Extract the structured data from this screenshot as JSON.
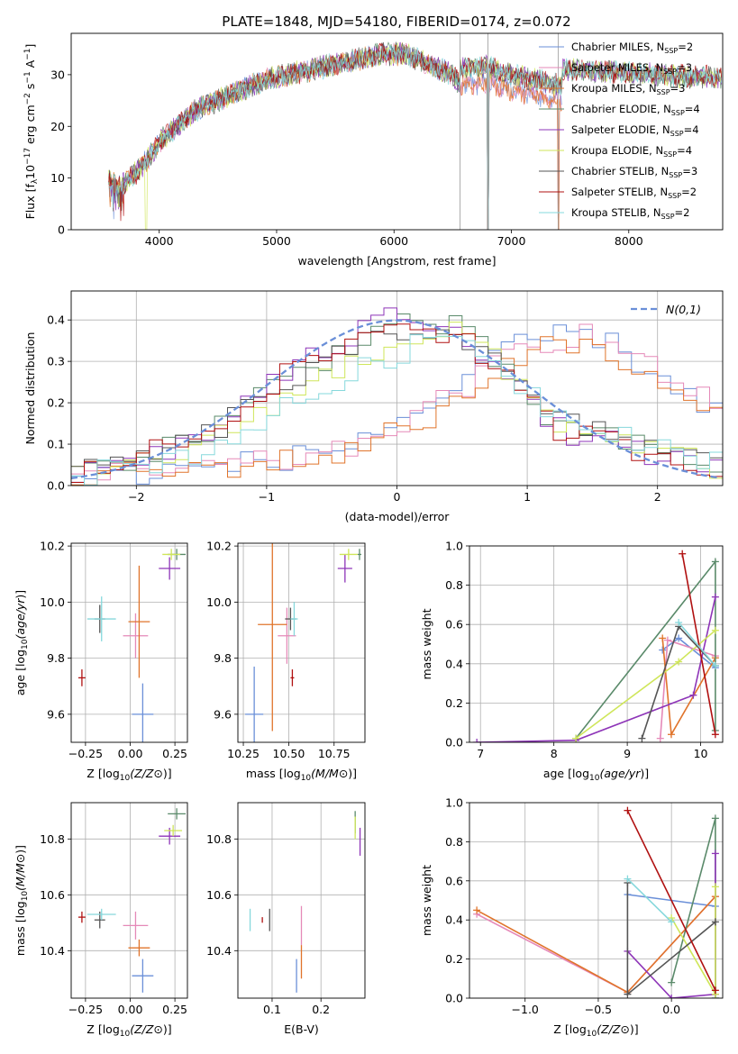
{
  "title": "PLATE=1848, MJD=54180, FIBERID=0174, z=0.072",
  "series_names": [
    "Chabrier MILES, N_SSP=2",
    "Salpeter MILES, N_SSP=3",
    "Kroupa MILES, N_SSP=3",
    "Chabrier ELODIE, N_SSP=4",
    "Salpeter ELODIE, N_SSP=4",
    "Kroupa ELODIE, N_SSP=4",
    "Chabrier STELIB, N_SSP=3",
    "Salpeter STELIB, N_SSP=2",
    "Kroupa STELIB, N_SSP=2"
  ],
  "legend_parts": [
    {
      "pre": "Chabrier MILES, N",
      "sub": "SSP",
      "post": "=2"
    },
    {
      "pre": "Salpeter MILES, N",
      "sub": "SSP",
      "post": "=3"
    },
    {
      "pre": "Kroupa MILES, N",
      "sub": "SSP",
      "post": "=3"
    },
    {
      "pre": "Chabrier ELODIE, N",
      "sub": "SSP",
      "post": "=4"
    },
    {
      "pre": "Salpeter ELODIE, N",
      "sub": "SSP",
      "post": "=4"
    },
    {
      "pre": "Kroupa ELODIE, N",
      "sub": "SSP",
      "post": "=4"
    },
    {
      "pre": "Chabrier STELIB, N",
      "sub": "SSP",
      "post": "=3"
    },
    {
      "pre": "Salpeter STELIB, N",
      "sub": "SSP",
      "post": "=2"
    },
    {
      "pre": "Kroupa STELIB, N",
      "sub": "SSP",
      "post": "=2"
    }
  ],
  "colors": [
    "#6a8fd8",
    "#e589b8",
    "#e0742b",
    "#5a8a6a",
    "#8e35b8",
    "#cfe65a",
    "#555555",
    "#b01010",
    "#86d8dc"
  ],
  "chart_data": [
    {
      "id": "spectrum",
      "type": "line",
      "xlabel": "wavelength [Angstrom, rest frame]",
      "ylabel": "Flux [f_λ 10^-17 erg cm^-2 s^-1 A^-1]",
      "ylabel_parts": [
        "Flux [f",
        "λ",
        "10",
        "−17",
        " erg cm",
        "−2",
        " s",
        "−1",
        " A",
        "−1",
        "]"
      ],
      "xlim": [
        3250,
        8800
      ],
      "ylim": [
        0,
        38
      ],
      "xticks": [
        4000,
        5000,
        6000,
        7000,
        8000
      ],
      "yticks": [
        0,
        10,
        20,
        30
      ],
      "xtick_labels": [
        "4000",
        "5000",
        "6000",
        "7000",
        "8000"
      ],
      "ytick_labels": [
        "0",
        "10",
        "20",
        "30"
      ],
      "grid": false,
      "legend": "top-right",
      "spectrum_trend": {
        "x": [
          3570,
          3650,
          3800,
          3950,
          4000,
          4100,
          4300,
          4500,
          4700,
          4900,
          5100,
          5300,
          5500,
          5700,
          5900,
          6100,
          6300,
          6500,
          6560,
          6800,
          7000,
          7200,
          7400,
          7430
        ],
        "y": [
          10,
          8,
          11,
          15,
          17,
          19,
          23,
          25,
          27,
          29,
          30,
          31,
          32,
          33,
          34,
          34,
          32,
          30,
          28,
          28.5,
          27,
          26,
          25,
          25
        ]
      },
      "vertical_lines": [
        6563,
        6800,
        7400
      ]
    },
    {
      "id": "residual-histogram",
      "type": "line",
      "xlabel": "(data-model)/error",
      "ylabel": "Normed distribution",
      "xlim": [
        -2.5,
        2.5
      ],
      "ylim": [
        0,
        0.47
      ],
      "xticks": [
        -2,
        -1,
        0,
        1,
        2
      ],
      "yticks": [
        0,
        0.1,
        0.2,
        0.3,
        0.4
      ],
      "xtick_labels": [
        "−2",
        "−1",
        "0",
        "1",
        "2"
      ],
      "ytick_labels": [
        "0.0",
        "0.1",
        "0.2",
        "0.3",
        "0.4"
      ],
      "grid": true,
      "legend": "top-right",
      "legend_label": "N(0,1)",
      "normal_curve": {
        "mean": 0,
        "sigma": 1
      },
      "hist_envelopes": [
        {
          "x": [
            -2.5,
            -1.5,
            -0.5,
            0.3,
            1.0,
            1.5,
            2.5
          ],
          "y": [
            0.02,
            0.04,
            0.08,
            0.2,
            0.35,
            0.37,
            0.17
          ]
        },
        {
          "x": [
            -2.5,
            -1.5,
            -0.5,
            0.3,
            1.0,
            1.5,
            2.5
          ],
          "y": [
            0.02,
            0.04,
            0.07,
            0.19,
            0.34,
            0.37,
            0.18
          ]
        },
        {
          "x": [
            -2.5,
            -1.5,
            -0.5,
            0.3,
            1.0,
            1.5,
            2.5
          ],
          "y": [
            0.02,
            0.04,
            0.07,
            0.17,
            0.33,
            0.34,
            0.15
          ]
        },
        {
          "x": [
            -2.5,
            -1.5,
            -1.0,
            0.0,
            0.5,
            1.2,
            2.5
          ],
          "y": [
            0.02,
            0.12,
            0.23,
            0.4,
            0.38,
            0.15,
            0.04
          ]
        },
        {
          "x": [
            -2.5,
            -1.5,
            -1.0,
            0.0,
            0.5,
            1.2,
            2.5
          ],
          "y": [
            0.02,
            0.11,
            0.24,
            0.42,
            0.38,
            0.14,
            0.03
          ]
        },
        {
          "x": [
            -2.5,
            -1.5,
            -1.0,
            0.0,
            0.5,
            1.2,
            2.5
          ],
          "y": [
            0.02,
            0.09,
            0.19,
            0.35,
            0.38,
            0.16,
            0.04
          ]
        },
        {
          "x": [
            -2.5,
            -1.5,
            -1.0,
            0.0,
            0.5,
            1.2,
            2.5
          ],
          "y": [
            0.02,
            0.11,
            0.22,
            0.38,
            0.37,
            0.16,
            0.05
          ]
        },
        {
          "x": [
            -2.5,
            -1.5,
            -1.0,
            0.0,
            0.5,
            1.2,
            2.5
          ],
          "y": [
            0.02,
            0.12,
            0.24,
            0.4,
            0.36,
            0.14,
            0.04
          ]
        },
        {
          "x": [
            -2.5,
            -1.5,
            -1.0,
            0.0,
            0.5,
            1.2,
            2.5
          ],
          "y": [
            0.02,
            0.08,
            0.16,
            0.32,
            0.37,
            0.18,
            0.05
          ]
        }
      ]
    },
    {
      "id": "Z-vs-age",
      "type": "scatter",
      "xlabel": "Z [log10(Z/Z⊙)]",
      "ylabel": "age [log10(age/yr)]",
      "xlim": [
        -0.33,
        0.32
      ],
      "ylim": [
        9.5,
        10.21
      ],
      "xticks": [
        -0.25,
        0,
        0.25
      ],
      "yticks": [
        9.6,
        9.8,
        10.0,
        10.2
      ],
      "xtick_labels": [
        "−0.25",
        "0.00",
        "0.25"
      ],
      "ytick_labels": [
        "9.6",
        "9.8",
        "10.0",
        "10.2"
      ],
      "grid": true,
      "points": [
        {
          "x": 0.07,
          "y": 9.6,
          "ex": 0.06,
          "ey": 0.11
        },
        {
          "x": 0.03,
          "y": 9.88,
          "ex": 0.07,
          "ey": 0.08
        },
        {
          "x": 0.05,
          "y": 9.93,
          "ex": 0.06,
          "ey": 0.2
        },
        {
          "x": 0.26,
          "y": 10.17,
          "ex": 0.05,
          "ey": 0.02
        },
        {
          "x": 0.22,
          "y": 10.12,
          "ex": 0.06,
          "ey": 0.04
        },
        {
          "x": 0.23,
          "y": 10.17,
          "ex": 0.05,
          "ey": 0.02
        },
        {
          "x": -0.17,
          "y": 9.94,
          "ex": 0.03,
          "ey": 0.05
        },
        {
          "x": -0.27,
          "y": 9.73,
          "ex": 0.02,
          "ey": 0.03
        },
        {
          "x": -0.16,
          "y": 9.94,
          "ex": 0.08,
          "ey": 0.08
        }
      ]
    },
    {
      "id": "mass-vs-age",
      "type": "scatter",
      "xlabel": "mass [log10(M/M⊙)]",
      "ylabel": "",
      "xlim": [
        10.22,
        10.92
      ],
      "ylim": [
        9.5,
        10.21
      ],
      "xticks": [
        10.25,
        10.5,
        10.75
      ],
      "yticks": [
        9.6,
        9.8,
        10.0,
        10.2
      ],
      "xtick_labels": [
        "10.25",
        "10.50",
        "10.75"
      ],
      "ytick_labels": [
        "9.6",
        "9.8",
        "10.0",
        "10.2"
      ],
      "grid": true,
      "points": [
        {
          "x": 10.31,
          "y": 9.6,
          "ex": 0.05,
          "ey": 0.17
        },
        {
          "x": 10.49,
          "y": 9.88,
          "ex": 0.05,
          "ey": 0.1
        },
        {
          "x": 10.41,
          "y": 9.92,
          "ex": 0.08,
          "ey": 0.38
        },
        {
          "x": 10.89,
          "y": 10.17,
          "ex": 0.01,
          "ey": 0.02
        },
        {
          "x": 10.81,
          "y": 10.12,
          "ex": 0.04,
          "ey": 0.05
        },
        {
          "x": 10.83,
          "y": 10.17,
          "ex": 0.05,
          "ey": 0.02
        },
        {
          "x": 10.51,
          "y": 9.94,
          "ex": 0.03,
          "ey": 0.04
        },
        {
          "x": 10.52,
          "y": 9.73,
          "ex": 0.01,
          "ey": 0.03
        },
        {
          "x": 10.53,
          "y": 9.94,
          "ex": 0.02,
          "ey": 0.06
        }
      ]
    },
    {
      "id": "age-vs-weight",
      "type": "line",
      "xlabel": "age [log10(age/yr)]",
      "ylabel": "mass weight",
      "xlim": [
        6.85,
        10.3
      ],
      "ylim": [
        0,
        1
      ],
      "xticks": [
        7,
        8,
        9,
        10
      ],
      "yticks": [
        0,
        0.2,
        0.4,
        0.6,
        0.8,
        1.0
      ],
      "xtick_labels": [
        "7",
        "8",
        "9",
        "10"
      ],
      "ytick_labels": [
        "0.0",
        "0.2",
        "0.4",
        "0.6",
        "0.8",
        "1.0"
      ],
      "grid": true,
      "series_points": [
        {
          "x": [
            9.48,
            9.7,
            10.2
          ],
          "y": [
            0.47,
            0.53,
            0.38
          ]
        },
        {
          "x": [
            9.45,
            9.55,
            10.2
          ],
          "y": [
            0.02,
            0.52,
            0.44
          ]
        },
        {
          "x": [
            9.48,
            9.6,
            10.2
          ],
          "y": [
            0.53,
            0.04,
            0.43
          ]
        },
        {
          "x": [
            8.3,
            10.2,
            10.2
          ],
          "y": [
            0.02,
            0.92,
            0.06
          ]
        },
        {
          "x": [
            6.95,
            8.3,
            9.9,
            10.2
          ],
          "y": [
            0.0,
            0.01,
            0.24,
            0.74
          ]
        },
        {
          "x": [
            8.3,
            9.7,
            10.2
          ],
          "y": [
            0.02,
            0.41,
            0.57
          ]
        },
        {
          "x": [
            9.2,
            9.7,
            10.2
          ],
          "y": [
            0.02,
            0.59,
            0.39
          ]
        },
        {
          "x": [
            9.75,
            10.2
          ],
          "y": [
            0.96,
            0.04
          ]
        },
        {
          "x": [
            9.7,
            10.2
          ],
          "y": [
            0.61,
            0.39
          ]
        }
      ]
    },
    {
      "id": "Z-vs-mass",
      "type": "scatter",
      "xlabel": "Z [log10(Z/Z⊙)]",
      "ylabel": "mass [log10(M/M⊙)]",
      "xlim": [
        -0.33,
        0.32
      ],
      "ylim": [
        10.23,
        10.93
      ],
      "xticks": [
        -0.25,
        0,
        0.25
      ],
      "yticks": [
        10.4,
        10.6,
        10.8
      ],
      "xtick_labels": [
        "−0.25",
        "0.00",
        "0.25"
      ],
      "ytick_labels": [
        "10.4",
        "10.6",
        "10.8"
      ],
      "grid": true,
      "points": [
        {
          "x": 0.07,
          "y": 10.31,
          "ex": 0.06,
          "ey": 0.06
        },
        {
          "x": 0.03,
          "y": 10.49,
          "ex": 0.07,
          "ey": 0.05
        },
        {
          "x": 0.05,
          "y": 10.41,
          "ex": 0.06,
          "ey": 0.03
        },
        {
          "x": 0.26,
          "y": 10.89,
          "ex": 0.05,
          "ey": 0.02
        },
        {
          "x": 0.22,
          "y": 10.81,
          "ex": 0.06,
          "ey": 0.03
        },
        {
          "x": 0.24,
          "y": 10.83,
          "ex": 0.05,
          "ey": 0.02
        },
        {
          "x": -0.17,
          "y": 10.51,
          "ex": 0.03,
          "ey": 0.03
        },
        {
          "x": -0.27,
          "y": 10.52,
          "ex": 0.02,
          "ey": 0.02
        },
        {
          "x": -0.16,
          "y": 10.53,
          "ex": 0.08,
          "ey": 0.02
        }
      ]
    },
    {
      "id": "EBV-vs-mass",
      "type": "scatter",
      "xlabel": "E(B-V)",
      "ylabel": "",
      "xlim": [
        0.03,
        0.29
      ],
      "ylim": [
        10.23,
        10.93
      ],
      "xticks": [
        0.1,
        0.2
      ],
      "yticks": [
        10.4,
        10.6,
        10.8
      ],
      "xtick_labels": [
        "0.1",
        "0.2"
      ],
      "ytick_labels": [
        "10.4",
        "10.6",
        "10.8"
      ],
      "grid": true,
      "points": [
        {
          "x": 0.15,
          "y": 10.31,
          "ex": 0.0,
          "ey": 0.06
        },
        {
          "x": 0.16,
          "y": 10.49,
          "ex": 0.0,
          "ey": 0.07
        },
        {
          "x": 0.16,
          "y": 10.36,
          "ex": 0.0,
          "ey": 0.06
        },
        {
          "x": 0.27,
          "y": 10.86,
          "ex": 0.0,
          "ey": 0.04
        },
        {
          "x": 0.28,
          "y": 10.79,
          "ex": 0.0,
          "ey": 0.05
        },
        {
          "x": 0.27,
          "y": 10.84,
          "ex": 0.0,
          "ey": 0.04
        },
        {
          "x": 0.095,
          "y": 10.51,
          "ex": 0.0,
          "ey": 0.04
        },
        {
          "x": 0.08,
          "y": 10.51,
          "ex": 0.0,
          "ey": 0.01
        },
        {
          "x": 0.055,
          "y": 10.51,
          "ex": 0.0,
          "ey": 0.04
        }
      ]
    },
    {
      "id": "Z-vs-weight",
      "type": "line",
      "xlabel": "Z [log10(Z/Z⊙)]",
      "ylabel": "mass weight",
      "xlim": [
        -1.38,
        0.35
      ],
      "ylim": [
        0,
        1
      ],
      "xticks": [
        -1.0,
        -0.5,
        0.0
      ],
      "yticks": [
        0,
        0.2,
        0.4,
        0.6,
        0.8,
        1.0
      ],
      "xtick_labels": [
        "−1.0",
        "−0.5",
        "0.0"
      ],
      "ytick_labels": [
        "0.0",
        "0.2",
        "0.4",
        "0.6",
        "0.8",
        "1.0"
      ],
      "grid": true,
      "series_points": [
        {
          "x": [
            -0.3,
            0.3,
            0.3
          ],
          "y": [
            0.53,
            0.47,
            0.0
          ]
        },
        {
          "x": [
            -1.33,
            -0.3,
            0.3
          ],
          "y": [
            0.43,
            0.03,
            0.52
          ]
        },
        {
          "x": [
            -1.33,
            -0.3,
            0.3
          ],
          "y": [
            0.45,
            0.03,
            0.52
          ]
        },
        {
          "x": [
            0.0,
            0.3,
            0.3
          ],
          "y": [
            0.08,
            0.92,
            0.0
          ]
        },
        {
          "x": [
            -0.3,
            0.0,
            0.3,
            0.3
          ],
          "y": [
            0.24,
            0.0,
            0.02,
            0.74
          ]
        },
        {
          "x": [
            0.0,
            0.3,
            0.3
          ],
          "y": [
            0.41,
            0.02,
            0.57
          ]
        },
        {
          "x": [
            -0.3,
            -0.3,
            0.3
          ],
          "y": [
            0.59,
            0.02,
            0.39
          ]
        },
        {
          "x": [
            -0.3,
            0.3
          ],
          "y": [
            0.96,
            0.04
          ]
        },
        {
          "x": [
            -0.3,
            0.0
          ],
          "y": [
            0.61,
            0.39
          ]
        }
      ]
    }
  ]
}
